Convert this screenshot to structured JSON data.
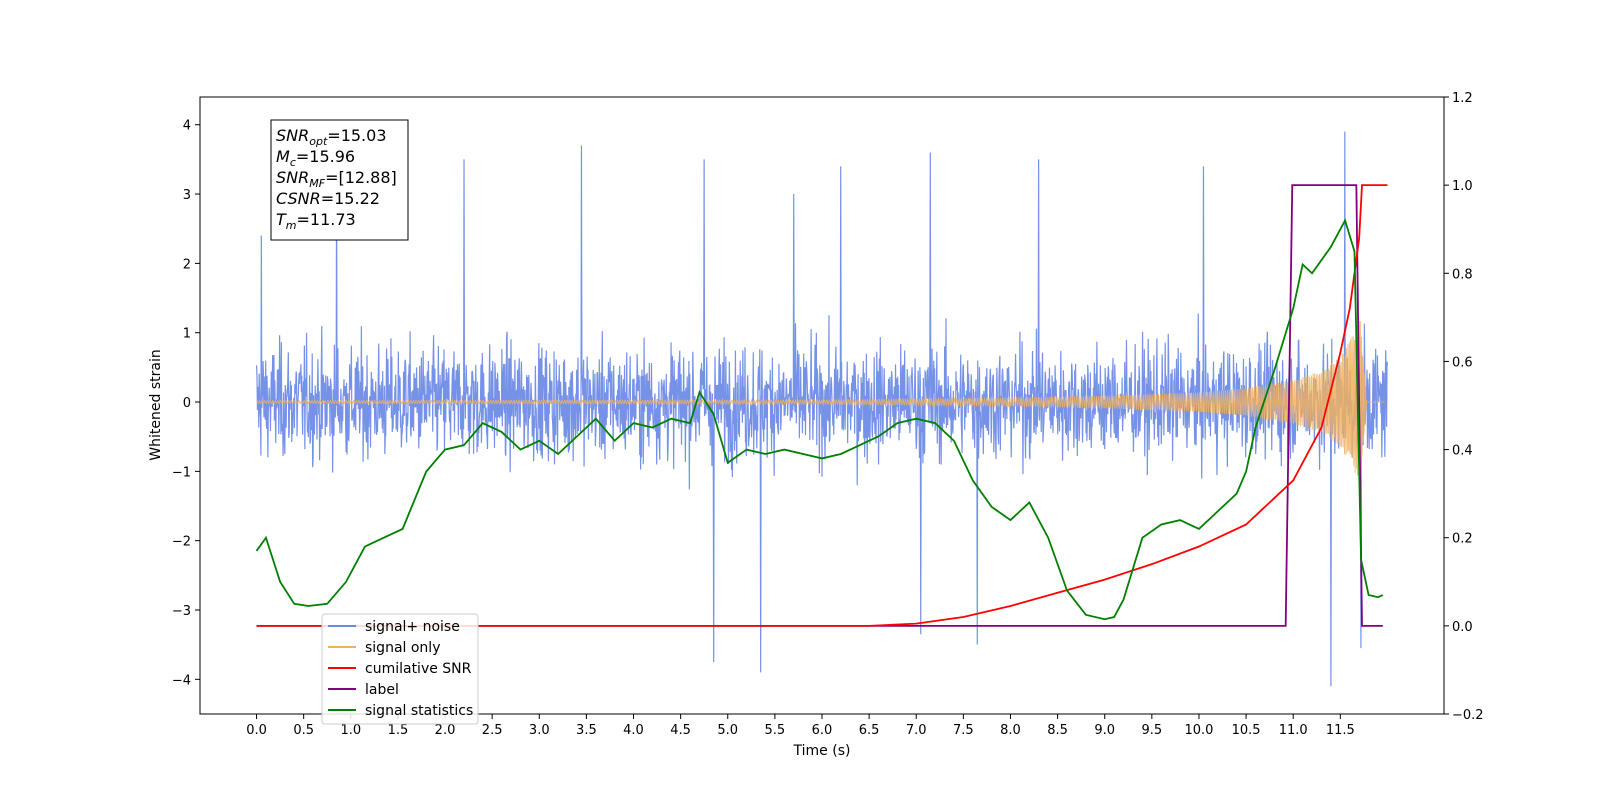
{
  "chart_data": {
    "type": "line",
    "xlabel": "Time (s)",
    "ylabel": "Whitened strain",
    "xlim": [
      -0.6,
      12.6
    ],
    "ylim": [
      -4.5,
      4.4
    ],
    "y2lim": [
      -0.2,
      1.2
    ],
    "x_ticks": [
      0.0,
      0.5,
      1.0,
      1.5,
      2.0,
      2.5,
      3.0,
      3.5,
      4.0,
      4.5,
      5.0,
      5.5,
      6.0,
      6.5,
      7.0,
      7.5,
      8.0,
      8.5,
      9.0,
      9.5,
      10.0,
      10.5,
      11.0,
      11.5
    ],
    "x_tick_labels": [
      "0.0",
      "0.5",
      "1.0",
      "1.5",
      "2.0",
      "2.5",
      "3.0",
      "3.5",
      "4.0",
      "4.5",
      "5.0",
      "5.5",
      "6.0",
      "6.5",
      "7.0",
      "7.5",
      "8.0",
      "8.5",
      "9.0",
      "9.5",
      "10.0",
      "10.5",
      "11.0",
      "11.5"
    ],
    "y_ticks": [
      4,
      3,
      2,
      1,
      0,
      -1,
      -2,
      -3,
      -4
    ],
    "y_tick_labels": [
      "4",
      "3",
      "2",
      "1",
      "0",
      "−1",
      "−2",
      "−3",
      "−4"
    ],
    "y2_ticks": [
      1.2,
      1.0,
      0.8,
      0.6,
      0.4,
      0.2,
      0.0,
      -0.2
    ],
    "y2_tick_labels": [
      "1.2",
      "1.0",
      "0.8",
      "0.6",
      "0.4",
      "0.2",
      "0.0",
      "−0.2"
    ],
    "grid": false,
    "legend_position": "lower-left",
    "series": [
      {
        "name": "signal+ noise",
        "axis": "left",
        "color": "#6a89e6",
        "style": "dense noise, typically within ±2 with peaks to about ±3.9",
        "envelope": {
          "t": [
            0,
            12
          ],
          "lower": -2.2,
          "upper": 2.2
        },
        "peaks": [
          [
            0.05,
            2.4
          ],
          [
            0.85,
            3.3
          ],
          [
            2.2,
            3.5
          ],
          [
            3.45,
            3.7
          ],
          [
            4.75,
            3.5
          ],
          [
            5.7,
            3.0
          ],
          [
            6.2,
            3.4
          ],
          [
            7.15,
            3.6
          ],
          [
            8.3,
            3.5
          ],
          [
            10.05,
            3.4
          ],
          [
            11.55,
            3.9
          ],
          [
            4.85,
            -3.75
          ],
          [
            5.35,
            -3.9
          ],
          [
            7.05,
            -3.35
          ],
          [
            7.65,
            -3.5
          ],
          [
            11.4,
            -4.1
          ],
          [
            11.72,
            -3.55
          ]
        ]
      },
      {
        "name": "signal only",
        "axis": "left",
        "color": "#f0b060",
        "style": "chirp whose amplitude grows toward the merger",
        "amplitude": {
          "t": [
            0,
            6,
            8,
            9,
            10,
            10.5,
            11.0,
            11.3,
            11.5,
            11.65,
            11.72,
            11.78
          ],
          "a": [
            0.02,
            0.03,
            0.06,
            0.09,
            0.14,
            0.2,
            0.32,
            0.45,
            0.65,
            1.0,
            1.25,
            0.0
          ]
        }
      },
      {
        "name": "cumilative SNR",
        "axis": "right",
        "color": "#ff0000",
        "t": [
          0,
          6.5,
          7.0,
          7.5,
          8.0,
          8.5,
          9.0,
          9.5,
          10.0,
          10.5,
          11.0,
          11.3,
          11.5,
          11.6,
          11.7,
          11.73,
          11.76,
          12.0
        ],
        "values": [
          0.0,
          0.0,
          0.005,
          0.02,
          0.045,
          0.075,
          0.105,
          0.14,
          0.18,
          0.23,
          0.33,
          0.45,
          0.62,
          0.72,
          0.88,
          1.0,
          1.0,
          1.0
        ]
      },
      {
        "name": "label",
        "axis": "right",
        "color": "#800080",
        "t": [
          0,
          10.92,
          10.99,
          11.67,
          11.73,
          11.95
        ],
        "values": [
          0,
          0,
          1,
          1,
          0,
          0
        ]
      },
      {
        "name": "signal statistics",
        "axis": "right",
        "color": "#008000",
        "t": [
          0,
          0.1,
          0.25,
          0.4,
          0.55,
          0.75,
          0.95,
          1.15,
          1.35,
          1.55,
          1.8,
          2.0,
          2.2,
          2.4,
          2.6,
          2.8,
          3.0,
          3.2,
          3.4,
          3.6,
          3.8,
          4.0,
          4.2,
          4.4,
          4.6,
          4.7,
          4.85,
          5.0,
          5.2,
          5.4,
          5.6,
          5.8,
          6.0,
          6.2,
          6.4,
          6.6,
          6.8,
          7.0,
          7.2,
          7.4,
          7.6,
          7.8,
          8.0,
          8.2,
          8.4,
          8.6,
          8.8,
          9.0,
          9.1,
          9.2,
          9.4,
          9.6,
          9.8,
          10.0,
          10.2,
          10.4,
          10.5,
          10.6,
          10.8,
          11.0,
          11.1,
          11.2,
          11.4,
          11.55,
          11.65,
          11.72,
          11.8,
          11.9,
          11.95
        ],
        "values": [
          0.17,
          0.2,
          0.1,
          0.05,
          0.045,
          0.05,
          0.1,
          0.18,
          0.2,
          0.22,
          0.35,
          0.4,
          0.41,
          0.46,
          0.44,
          0.4,
          0.42,
          0.39,
          0.43,
          0.47,
          0.42,
          0.46,
          0.45,
          0.47,
          0.46,
          0.53,
          0.48,
          0.37,
          0.4,
          0.39,
          0.4,
          0.39,
          0.38,
          0.39,
          0.41,
          0.43,
          0.46,
          0.47,
          0.46,
          0.42,
          0.33,
          0.27,
          0.24,
          0.28,
          0.2,
          0.08,
          0.025,
          0.015,
          0.02,
          0.06,
          0.2,
          0.23,
          0.24,
          0.22,
          0.26,
          0.3,
          0.35,
          0.45,
          0.58,
          0.72,
          0.82,
          0.8,
          0.86,
          0.92,
          0.85,
          0.15,
          0.07,
          0.065,
          0.07
        ]
      }
    ],
    "annotation": [
      {
        "base": "SNR",
        "sub": "opt",
        "value": "=15.03"
      },
      {
        "base": "M",
        "sub": "c",
        "value": "=15.96"
      },
      {
        "base": "SNR",
        "sub": "MF",
        "value": "=[12.88]"
      },
      {
        "base": "CSNR",
        "sub": "",
        "value": "=15.22"
      },
      {
        "base": "T",
        "sub": "m",
        "value": "=11.73"
      }
    ],
    "legend_items": [
      {
        "label": "signal+ noise",
        "color": "#6a89e6"
      },
      {
        "label": "signal only",
        "color": "#f0b060"
      },
      {
        "label": "cumilative SNR",
        "color": "#ff0000"
      },
      {
        "label": "label",
        "color": "#800080"
      },
      {
        "label": "signal statistics",
        "color": "#008000"
      }
    ]
  }
}
